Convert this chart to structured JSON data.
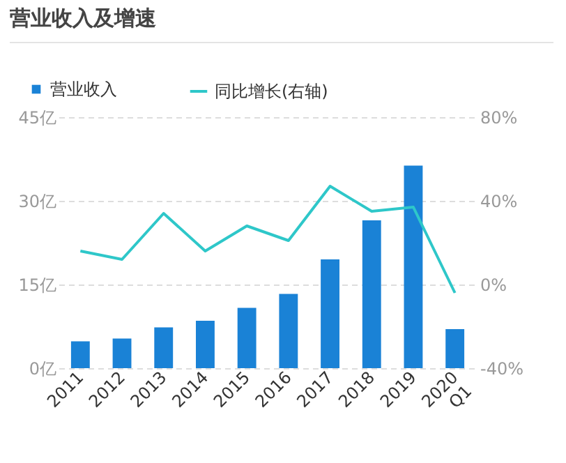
{
  "chart_data": {
    "type": "bar",
    "title": "营业收入及增速",
    "categories": [
      "2011",
      "2012",
      "2013",
      "2014",
      "2015",
      "2016",
      "2017",
      "2018",
      "2019",
      "2020 Q1"
    ],
    "series": [
      {
        "name": "营业收入",
        "color": "#1a82d6",
        "values": [
          4.8,
          5.3,
          7.3,
          8.5,
          10.8,
          13.3,
          19.5,
          26.5,
          36.3,
          7.0
        ]
      },
      {
        "name": "同比增长(右轴)",
        "type": "line",
        "axis": "y2",
        "color": "#2ec7c9",
        "values": [
          16,
          12,
          34,
          16,
          28,
          21,
          47,
          35,
          37,
          -4
        ]
      }
    ],
    "ylim": [
      0,
      45
    ],
    "yticks": [
      {
        "value": 0,
        "label": "0亿"
      },
      {
        "value": 15,
        "label": "15亿"
      },
      {
        "value": 30,
        "label": "30亿"
      },
      {
        "value": 45,
        "label": "45亿"
      }
    ],
    "y2lim": [
      -40,
      80
    ],
    "y2ticks": [
      {
        "value": -40,
        "label": "-40%"
      },
      {
        "value": 0,
        "label": "0%"
      },
      {
        "value": 40,
        "label": "40%"
      },
      {
        "value": 80,
        "label": "80%"
      }
    ],
    "grid": "y",
    "legend": "top left",
    "marker": "none",
    "line_style": "solid"
  }
}
